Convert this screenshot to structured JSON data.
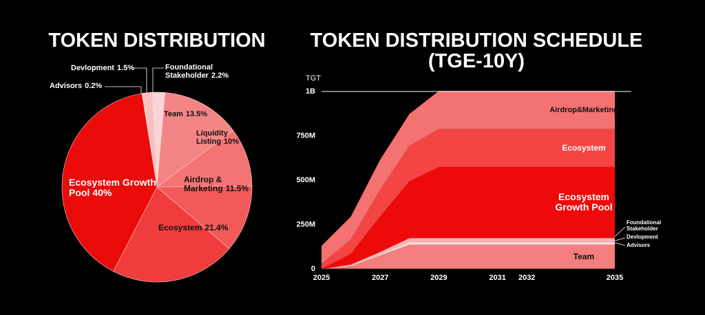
{
  "chart_data": [
    {
      "type": "pie",
      "title": "TOKEN DISTRIBUTION",
      "categories": [
        "Foundational Stakeholder",
        "Team",
        "Liquidity Listing",
        "Airdrop & Marketing",
        "Ecosystem",
        "Ecosystem Growth Pool",
        "Advisors",
        "Devlopment"
      ],
      "values": [
        2.2,
        13.5,
        10,
        11.5,
        21.4,
        40,
        0.2,
        1.5
      ],
      "value_labels": [
        "2.2%",
        "13.5%",
        "10%",
        "11.5%",
        "21.4%",
        "40%",
        "0.2%",
        "1.5%"
      ],
      "colors": [
        "#fbd5d5",
        "#f48585",
        "#f47474",
        "#f25a5a",
        "#f03c3c",
        "#ea0b0b",
        "#fde8e8",
        "#fac0c0"
      ]
    },
    {
      "type": "stacked_area",
      "title": "TOKEN DISTRIBUTION SCHEDULE\n(TGE-10Y)",
      "y_label": "TGT",
      "categories": [
        "2025",
        null,
        "2027",
        null,
        "2029",
        null,
        "2031",
        "2032",
        null,
        null,
        "2035"
      ],
      "ylim": [
        0,
        1000000000
      ],
      "yticks": [
        0,
        {
          "value": 250000000,
          "label": "250M"
        },
        {
          "value": 500000000,
          "label": "500M"
        },
        {
          "value": 750000000,
          "label": "750M"
        },
        {
          "value": 1000000000,
          "label": "1B"
        }
      ],
      "grid": false,
      "series": [
        {
          "name": "Team",
          "color": "#f47e7e",
          "values": [
            0,
            15000000,
            75000000,
            135000000,
            135000000,
            135000000,
            135000000,
            135000000,
            135000000,
            135000000,
            135000000
          ]
        },
        {
          "name": "Advisors",
          "color": "#ffe8e8",
          "values": [
            0,
            500000,
            1000000,
            2000000,
            2000000,
            2000000,
            2000000,
            2000000,
            2000000,
            2000000,
            2000000
          ]
        },
        {
          "name": "Devlopment",
          "color": "#ffd6d6",
          "values": [
            0,
            4000000,
            8000000,
            15000000,
            15000000,
            15000000,
            15000000,
            15000000,
            15000000,
            15000000,
            15000000
          ]
        },
        {
          "name": "Foundational Stakeholder",
          "color": "#ffb3b3",
          "values": [
            0,
            5000000,
            12000000,
            22000000,
            22000000,
            22000000,
            22000000,
            22000000,
            22000000,
            22000000,
            22000000
          ]
        },
        {
          "name": "Ecosystem Growth Pool",
          "color": "#ee0a0a",
          "values": [
            0,
            60000000,
            200000000,
            320000000,
            400000000,
            400000000,
            400000000,
            400000000,
            400000000,
            400000000,
            400000000
          ]
        },
        {
          "name": "Ecosystem",
          "color": "#f44444",
          "values": [
            30000000,
            80000000,
            150000000,
            200000000,
            214000000,
            214000000,
            214000000,
            214000000,
            214000000,
            214000000,
            214000000
          ]
        },
        {
          "name": "Airdrop&Marketing",
          "color": "#f47272",
          "values": [
            100000000,
            130000000,
            170000000,
            180000000,
            215000000,
            215000000,
            215000000,
            215000000,
            215000000,
            215000000,
            215000000
          ]
        }
      ]
    }
  ]
}
